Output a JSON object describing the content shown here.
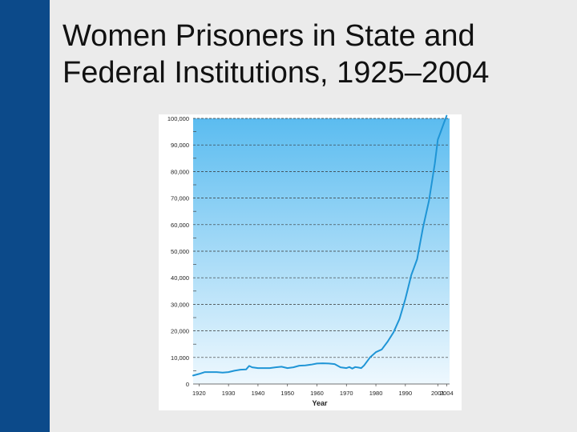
{
  "slide": {
    "title": "Women Prisoners in State and Federal Institutions, 1925–2004"
  },
  "colors": {
    "side_bar": "#0c4a8a",
    "background": "#ebebeb",
    "plot_top": "#5bbcf0",
    "plot_bottom": "#eef8fe",
    "line": "#1f95d6",
    "grid": "#333333"
  },
  "chart_data": {
    "type": "line",
    "title": "",
    "xlabel": "Year",
    "ylabel": "",
    "xlim": [
      1918,
      2005
    ],
    "ylim": [
      0,
      100000
    ],
    "grid": "horizontal dashed",
    "x_ticks": [
      "1920",
      "1930",
      "1940",
      "1950",
      "1960",
      "1970",
      "1980",
      "1990",
      "2001",
      "2004"
    ],
    "y_ticks": [
      "0",
      "10,000",
      "20,000",
      "30,000",
      "40,000",
      "50,000",
      "60,000",
      "70,000",
      "80,000",
      "90,000",
      "100,000"
    ],
    "x": [
      1918,
      1920,
      1922,
      1924,
      1926,
      1928,
      1930,
      1932,
      1934,
      1936,
      1937,
      1938,
      1940,
      1942,
      1944,
      1946,
      1948,
      1950,
      1952,
      1954,
      1956,
      1958,
      1960,
      1962,
      1964,
      1966,
      1968,
      1970,
      1971,
      1972,
      1973,
      1974,
      1975,
      1976,
      1978,
      1980,
      1982,
      1984,
      1986,
      1988,
      1990,
      1992,
      1994,
      1996,
      1998,
      2000,
      2001,
      2002,
      2003,
      2004
    ],
    "series": [
      {
        "values": [
          3200,
          3800,
          4500,
          4500,
          4500,
          4300,
          4500,
          5000,
          5400,
          5500,
          6800,
          6300,
          6000,
          6000,
          6000,
          6300,
          6500,
          6000,
          6300,
          6900,
          7000,
          7300,
          7700,
          7800,
          7700,
          7500,
          6300,
          6000,
          6400,
          5800,
          6400,
          6200,
          6000,
          7000,
          10000,
          12000,
          13000,
          16000,
          19500,
          24500,
          32000,
          41000,
          47000,
          59000,
          69000,
          83000,
          92000,
          95000,
          98000,
          101000
        ]
      }
    ]
  }
}
